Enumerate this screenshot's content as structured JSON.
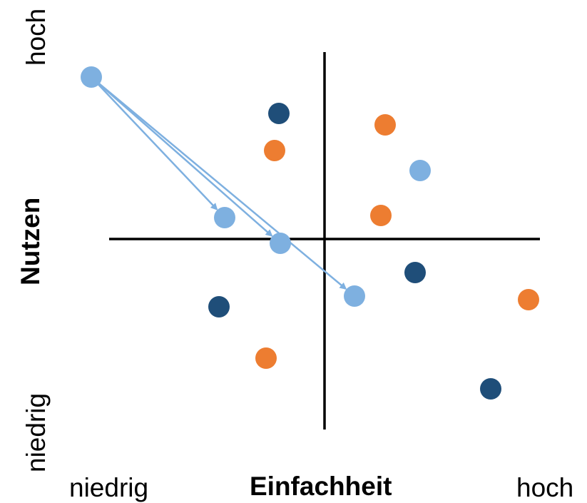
{
  "axes": {
    "x_title": "Einfachheit",
    "x_low": "niedrig",
    "x_high": "hoch",
    "y_title": "Nutzen",
    "y_low": "niedrig",
    "y_high": "hoch"
  },
  "colors": {
    "axis": "#000000",
    "light_blue": "#7eb0e0",
    "dark_blue": "#1f4e79",
    "orange": "#ed7d31",
    "arrow": "#7eb0e0"
  },
  "points": [
    {
      "id": "lb-source",
      "color": "light_blue",
      "x": -3.27,
      "y": 2.27
    },
    {
      "id": "lb-target-1",
      "color": "light_blue",
      "x": -1.4,
      "y": 0.3
    },
    {
      "id": "lb-target-2",
      "color": "light_blue",
      "x": -0.62,
      "y": -0.06
    },
    {
      "id": "lb-target-3",
      "color": "light_blue",
      "x": 0.42,
      "y": -0.8
    },
    {
      "id": "lb-4",
      "color": "light_blue",
      "x": 1.34,
      "y": 0.96
    },
    {
      "id": "db-1",
      "color": "dark_blue",
      "x": -0.64,
      "y": 1.76
    },
    {
      "id": "db-2",
      "color": "dark_blue",
      "x": 1.27,
      "y": -0.47
    },
    {
      "id": "db-3",
      "color": "dark_blue",
      "x": -1.48,
      "y": -0.95
    },
    {
      "id": "db-4",
      "color": "dark_blue",
      "x": 2.33,
      "y": -2.1
    },
    {
      "id": "or-1",
      "color": "orange",
      "x": 0.85,
      "y": 1.6
    },
    {
      "id": "or-2",
      "color": "orange",
      "x": -0.7,
      "y": 1.24
    },
    {
      "id": "or-3",
      "color": "orange",
      "x": 0.79,
      "y": 0.33
    },
    {
      "id": "or-4",
      "color": "orange",
      "x": 2.86,
      "y": -0.85
    },
    {
      "id": "or-5",
      "color": "orange",
      "x": -0.82,
      "y": -1.67
    }
  ],
  "arrows": [
    {
      "from": "lb-source",
      "to": "lb-target-1"
    },
    {
      "from": "lb-source",
      "to": "lb-target-2"
    },
    {
      "from": "lb-source",
      "to": "lb-target-3"
    }
  ]
}
